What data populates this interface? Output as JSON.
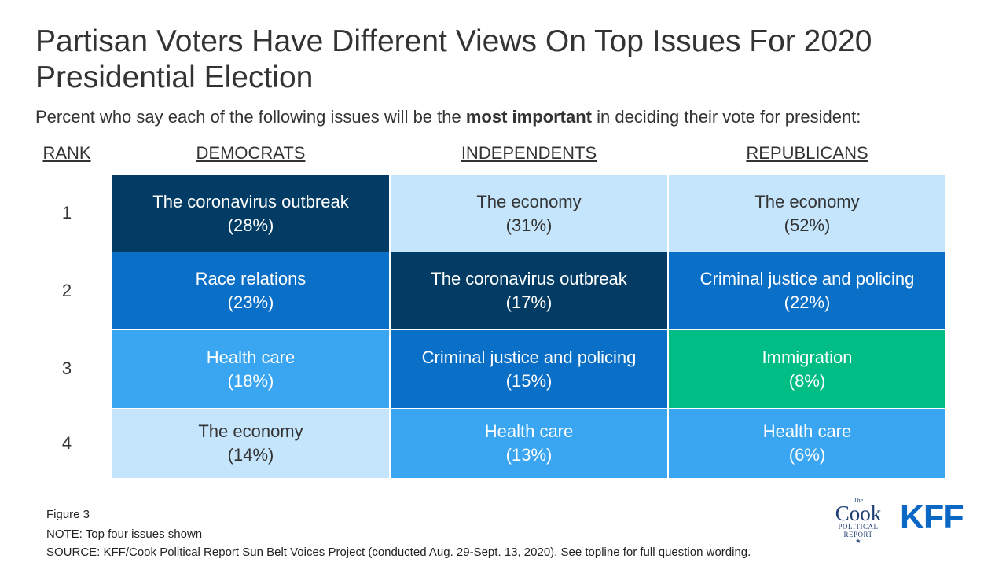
{
  "title": "Partisan Voters Have Different Views On Top Issues For 2020 Presidential Election",
  "subtitle": {
    "before": "Percent who say each of the following issues will be the ",
    "bold": "most important",
    "after": " in deciding their vote for president:"
  },
  "headers": {
    "rank": "RANK",
    "democrats": "DEMOCRATS",
    "independents": "INDEPENDENTS",
    "republicans": "REPUBLICANS"
  },
  "ranks": [
    "1",
    "2",
    "3",
    "4"
  ],
  "colors": {
    "coronavirus": "#023c64",
    "race": "#0a6fc7",
    "criminal_justice": "#0a6fc7",
    "health_care": "#3aa6f2",
    "economy": "#c4e5fb",
    "immigration": "#00bc85",
    "dark_text": "#333333",
    "light_text": "#ffffff"
  },
  "chart_data": {
    "type": "table",
    "columns": [
      "DEMOCRATS",
      "INDEPENDENTS",
      "REPUBLICANS"
    ],
    "rows": [
      [
        {
          "issue": "The coronavirus outbreak",
          "pct": "(28%)",
          "value": 28,
          "color": "#023c64",
          "text_color": "#ffffff"
        },
        {
          "issue": "The economy",
          "pct": "(31%)",
          "value": 31,
          "color": "#c4e5fb",
          "text_color": "#333333"
        },
        {
          "issue": "The economy",
          "pct": "(52%)",
          "value": 52,
          "color": "#c4e5fb",
          "text_color": "#333333"
        }
      ],
      [
        {
          "issue": "Race relations",
          "pct": "(23%)",
          "value": 23,
          "color": "#0a6fc7",
          "text_color": "#ffffff"
        },
        {
          "issue": "The coronavirus outbreak",
          "pct": "(17%)",
          "value": 17,
          "color": "#023c64",
          "text_color": "#ffffff"
        },
        {
          "issue": "Criminal justice and policing",
          "pct": "(22%)",
          "value": 22,
          "color": "#0a6fc7",
          "text_color": "#ffffff"
        }
      ],
      [
        {
          "issue": "Health care",
          "pct": "(18%)",
          "value": 18,
          "color": "#3aa6f2",
          "text_color": "#ffffff"
        },
        {
          "issue": "Criminal justice and policing",
          "pct": "(15%)",
          "value": 15,
          "color": "#0a6fc7",
          "text_color": "#ffffff"
        },
        {
          "issue": "Immigration",
          "pct": "(8%)",
          "value": 8,
          "color": "#00bc85",
          "text_color": "#ffffff"
        }
      ],
      [
        {
          "issue": "The economy",
          "pct": "(14%)",
          "value": 14,
          "color": "#c4e5fb",
          "text_color": "#333333"
        },
        {
          "issue": "Health care",
          "pct": "(13%)",
          "value": 13,
          "color": "#3aa6f2",
          "text_color": "#ffffff"
        },
        {
          "issue": "Health care",
          "pct": "(6%)",
          "value": 6,
          "color": "#3aa6f2",
          "text_color": "#ffffff"
        }
      ]
    ]
  },
  "footer": {
    "figure": "Figure 3",
    "note": "NOTE: Top four issues shown",
    "source": "SOURCE: KFF/Cook Political Report Sun Belt Voices Project (conducted Aug. 29-Sept. 13, 2020). See topline for full question wording."
  },
  "logos": {
    "cook_the": "The",
    "cook_word": "Cook",
    "cook_line1": "POLITICAL",
    "cook_line2": "REPORT",
    "cook_star": "★",
    "cook_icon": "cook-political-report-logo",
    "kff": "KFF",
    "kff_icon": "kff-logo"
  }
}
